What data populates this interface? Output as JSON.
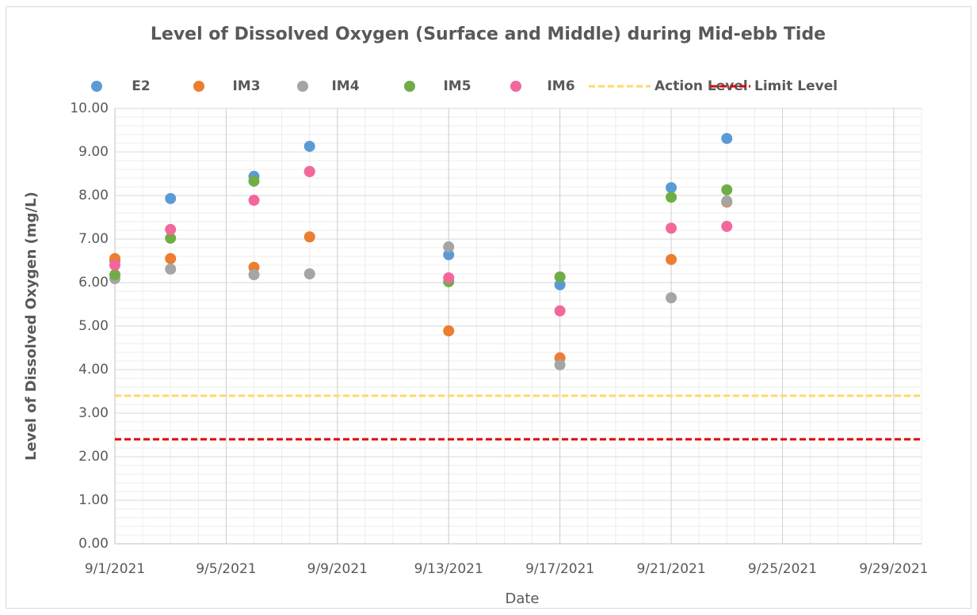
{
  "chart_data": {
    "type": "scatter",
    "title": "Level of Dissolved Oxygen (Surface and Middle) during Mid-ebb Tide",
    "x_label": "Date",
    "y_label": "Level of Dissolved Oxygen (mg/L)",
    "x": [
      "9/1/2021",
      "9/3/2021",
      "9/6/2021",
      "9/8/2021",
      "9/13/2021",
      "9/17/2021",
      "9/21/2021",
      "9/23/2021"
    ],
    "series": [
      {
        "name": "E2",
        "color": "#5b9bd5",
        "values": [
          6.5,
          7.93,
          8.44,
          9.13,
          6.64,
          5.95,
          8.18,
          9.31
        ]
      },
      {
        "name": "IM3",
        "color": "#ed7d31",
        "values": [
          6.55,
          6.55,
          6.35,
          7.05,
          4.89,
          4.27,
          6.53,
          7.85
        ]
      },
      {
        "name": "IM4",
        "color": "#a5a5a5",
        "values": [
          6.09,
          6.31,
          6.18,
          6.2,
          6.82,
          4.11,
          5.65,
          7.87
        ]
      },
      {
        "name": "IM5",
        "color": "#70ad47",
        "values": [
          6.18,
          7.02,
          8.33,
          8.55,
          6.02,
          6.13,
          7.96,
          8.13
        ]
      },
      {
        "name": "IM6",
        "color": "#f4679d",
        "values": [
          6.4,
          7.22,
          7.89,
          8.55,
          6.11,
          5.35,
          7.25,
          7.29
        ]
      }
    ],
    "reference_lines": [
      {
        "name": "Action Level",
        "color": "#ffd966",
        "value": 3.4
      },
      {
        "name": "Limit Level",
        "color": "#e00000",
        "value": 2.4
      }
    ],
    "xlim": [
      "9/1/2021",
      "9/30/2021"
    ],
    "xticks": [
      "9/1/2021",
      "9/5/2021",
      "9/9/2021",
      "9/13/2021",
      "9/17/2021",
      "9/21/2021",
      "9/25/2021",
      "9/29/2021"
    ],
    "ylim": [
      0,
      10
    ],
    "yticks": [
      {
        "value": 0,
        "label": "0.00"
      },
      {
        "value": 1,
        "label": "1.00"
      },
      {
        "value": 2,
        "label": "2.00"
      },
      {
        "value": 3,
        "label": "3.00"
      },
      {
        "value": 4,
        "label": "4.00"
      },
      {
        "value": 5,
        "label": "5.00"
      },
      {
        "value": 6,
        "label": "6.00"
      },
      {
        "value": 7,
        "label": "7.00"
      },
      {
        "value": 8,
        "label": "8.00"
      },
      {
        "value": 9,
        "label": "9.00"
      },
      {
        "value": 10,
        "label": "10.00"
      }
    ],
    "grid": true,
    "minor_grid": true,
    "legend": "top"
  }
}
